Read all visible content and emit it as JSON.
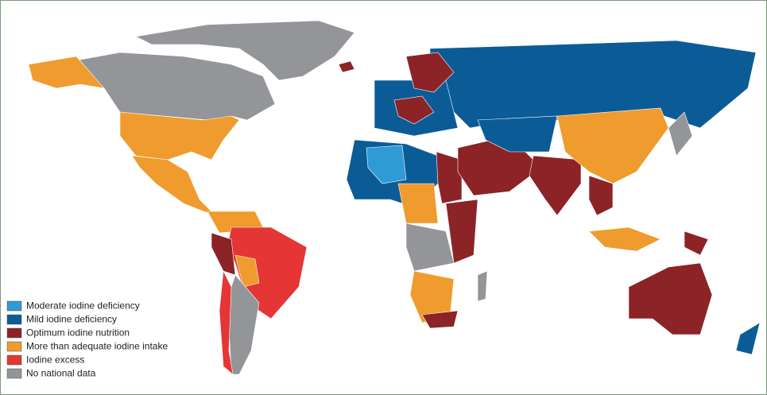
{
  "legend": {
    "items": [
      {
        "label": "Moderate iodine deficiency",
        "color": "#2e9ad6"
      },
      {
        "label": "Mild iodine deficiency",
        "color": "#0b5c96"
      },
      {
        "label": "Optimum iodine nutrition",
        "color": "#8b2327"
      },
      {
        "label": "More than adequate iodine intake",
        "color": "#ef9b2e"
      },
      {
        "label": "Iodine excess",
        "color": "#e53535"
      },
      {
        "label": "No national data",
        "color": "#939598"
      }
    ]
  }
}
